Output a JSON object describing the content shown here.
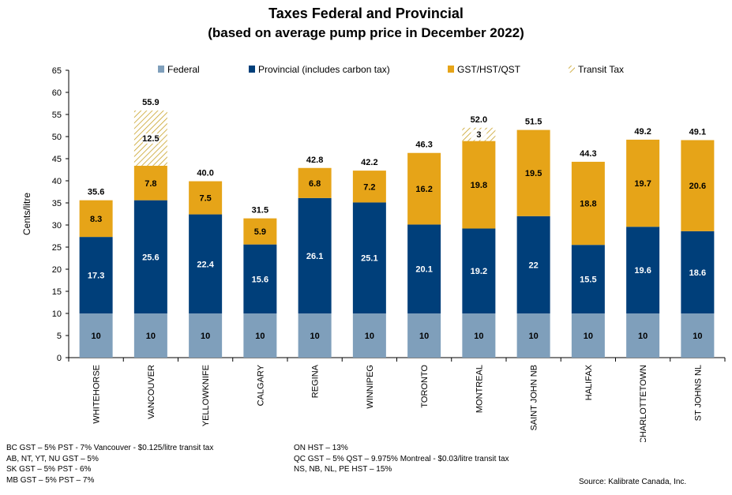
{
  "chart_data": {
    "type": "bar",
    "stacked": true,
    "title": "Taxes Federal and Provincial",
    "subtitle": "(based on average pump price in December 2022)",
    "ylabel": "Cents/litre",
    "ylim": [
      0,
      65
    ],
    "yticks": [
      0,
      5,
      10,
      15,
      20,
      25,
      30,
      35,
      40,
      45,
      50,
      55,
      60,
      65
    ],
    "legend_position": "top",
    "grid": false,
    "categories": [
      "WHITEHORSE",
      "VANCOUVER",
      "YELLOWKNIFE",
      "CALGARY",
      "REGINA",
      "WINNIPEG",
      "TORONTO",
      "MONTREAL",
      "SAINT JOHN NB",
      "HALIFAX",
      "CHARLOTTETOWN",
      "ST JOHNS NL"
    ],
    "series": [
      {
        "name": "Federal",
        "color": "#7f9fbb",
        "values": [
          10,
          10,
          10,
          10,
          10,
          10,
          10,
          10,
          10,
          10,
          10,
          10
        ],
        "labels": [
          "10",
          "10",
          "10",
          "10",
          "10",
          "10",
          "10",
          "10",
          "10",
          "10",
          "10",
          "10"
        ]
      },
      {
        "name": "Provincial (includes carbon tax)",
        "color": "#003f7a",
        "values": [
          17.3,
          25.6,
          22.4,
          15.6,
          26.1,
          25.1,
          20.1,
          19.2,
          22,
          15.5,
          19.6,
          18.6
        ],
        "labels": [
          "17.3",
          "25.6",
          "22.4",
          "15.6",
          "26.1",
          "25.1",
          "20.1",
          "19.2",
          "22",
          "15.5",
          "19.6",
          "18.6"
        ]
      },
      {
        "name": "GST/HST/QST",
        "color": "#e6a418",
        "values": [
          8.3,
          7.8,
          7.5,
          5.9,
          6.8,
          7.2,
          16.2,
          19.8,
          19.5,
          18.8,
          19.7,
          20.6
        ],
        "labels": [
          "8.3",
          "7.8",
          "7.5",
          "5.9",
          "6.8",
          "7.2",
          "16.2",
          "19.8",
          "19.5",
          "18.8",
          "19.7",
          "20.6"
        ]
      },
      {
        "name": "Transit Tax",
        "color": "#d7b44a",
        "pattern": "hatched",
        "values": [
          0,
          12.5,
          0,
          0,
          0,
          0,
          0,
          3,
          0,
          0,
          0,
          0
        ],
        "labels": [
          "",
          "12.5",
          "",
          "",
          "",
          "",
          "",
          "3",
          "",
          "",
          "",
          ""
        ]
      }
    ],
    "totals": [
      "35.6",
      "55.9",
      "40.0",
      "31.5",
      "42.8",
      "42.2",
      "46.3",
      "52.0",
      "51.5",
      "44.3",
      "49.2",
      "49.1"
    ]
  },
  "notes": {
    "left": [
      "BC GST – 5% PST - 7% Vancouver - $0.125/litre transit tax",
      "AB, NT, YT, NU GST – 5%",
      "SK GST – 5% PST - 6%",
      "MB GST – 5% PST – 7%"
    ],
    "right": [
      "ON HST – 13%",
      "QC GST – 5% QST – 9.975% Montreal - $0.03/litre transit tax",
      "NS, NB, NL, PE HST – 15%"
    ]
  },
  "source": "Source:  Kalibrate Canada, Inc."
}
